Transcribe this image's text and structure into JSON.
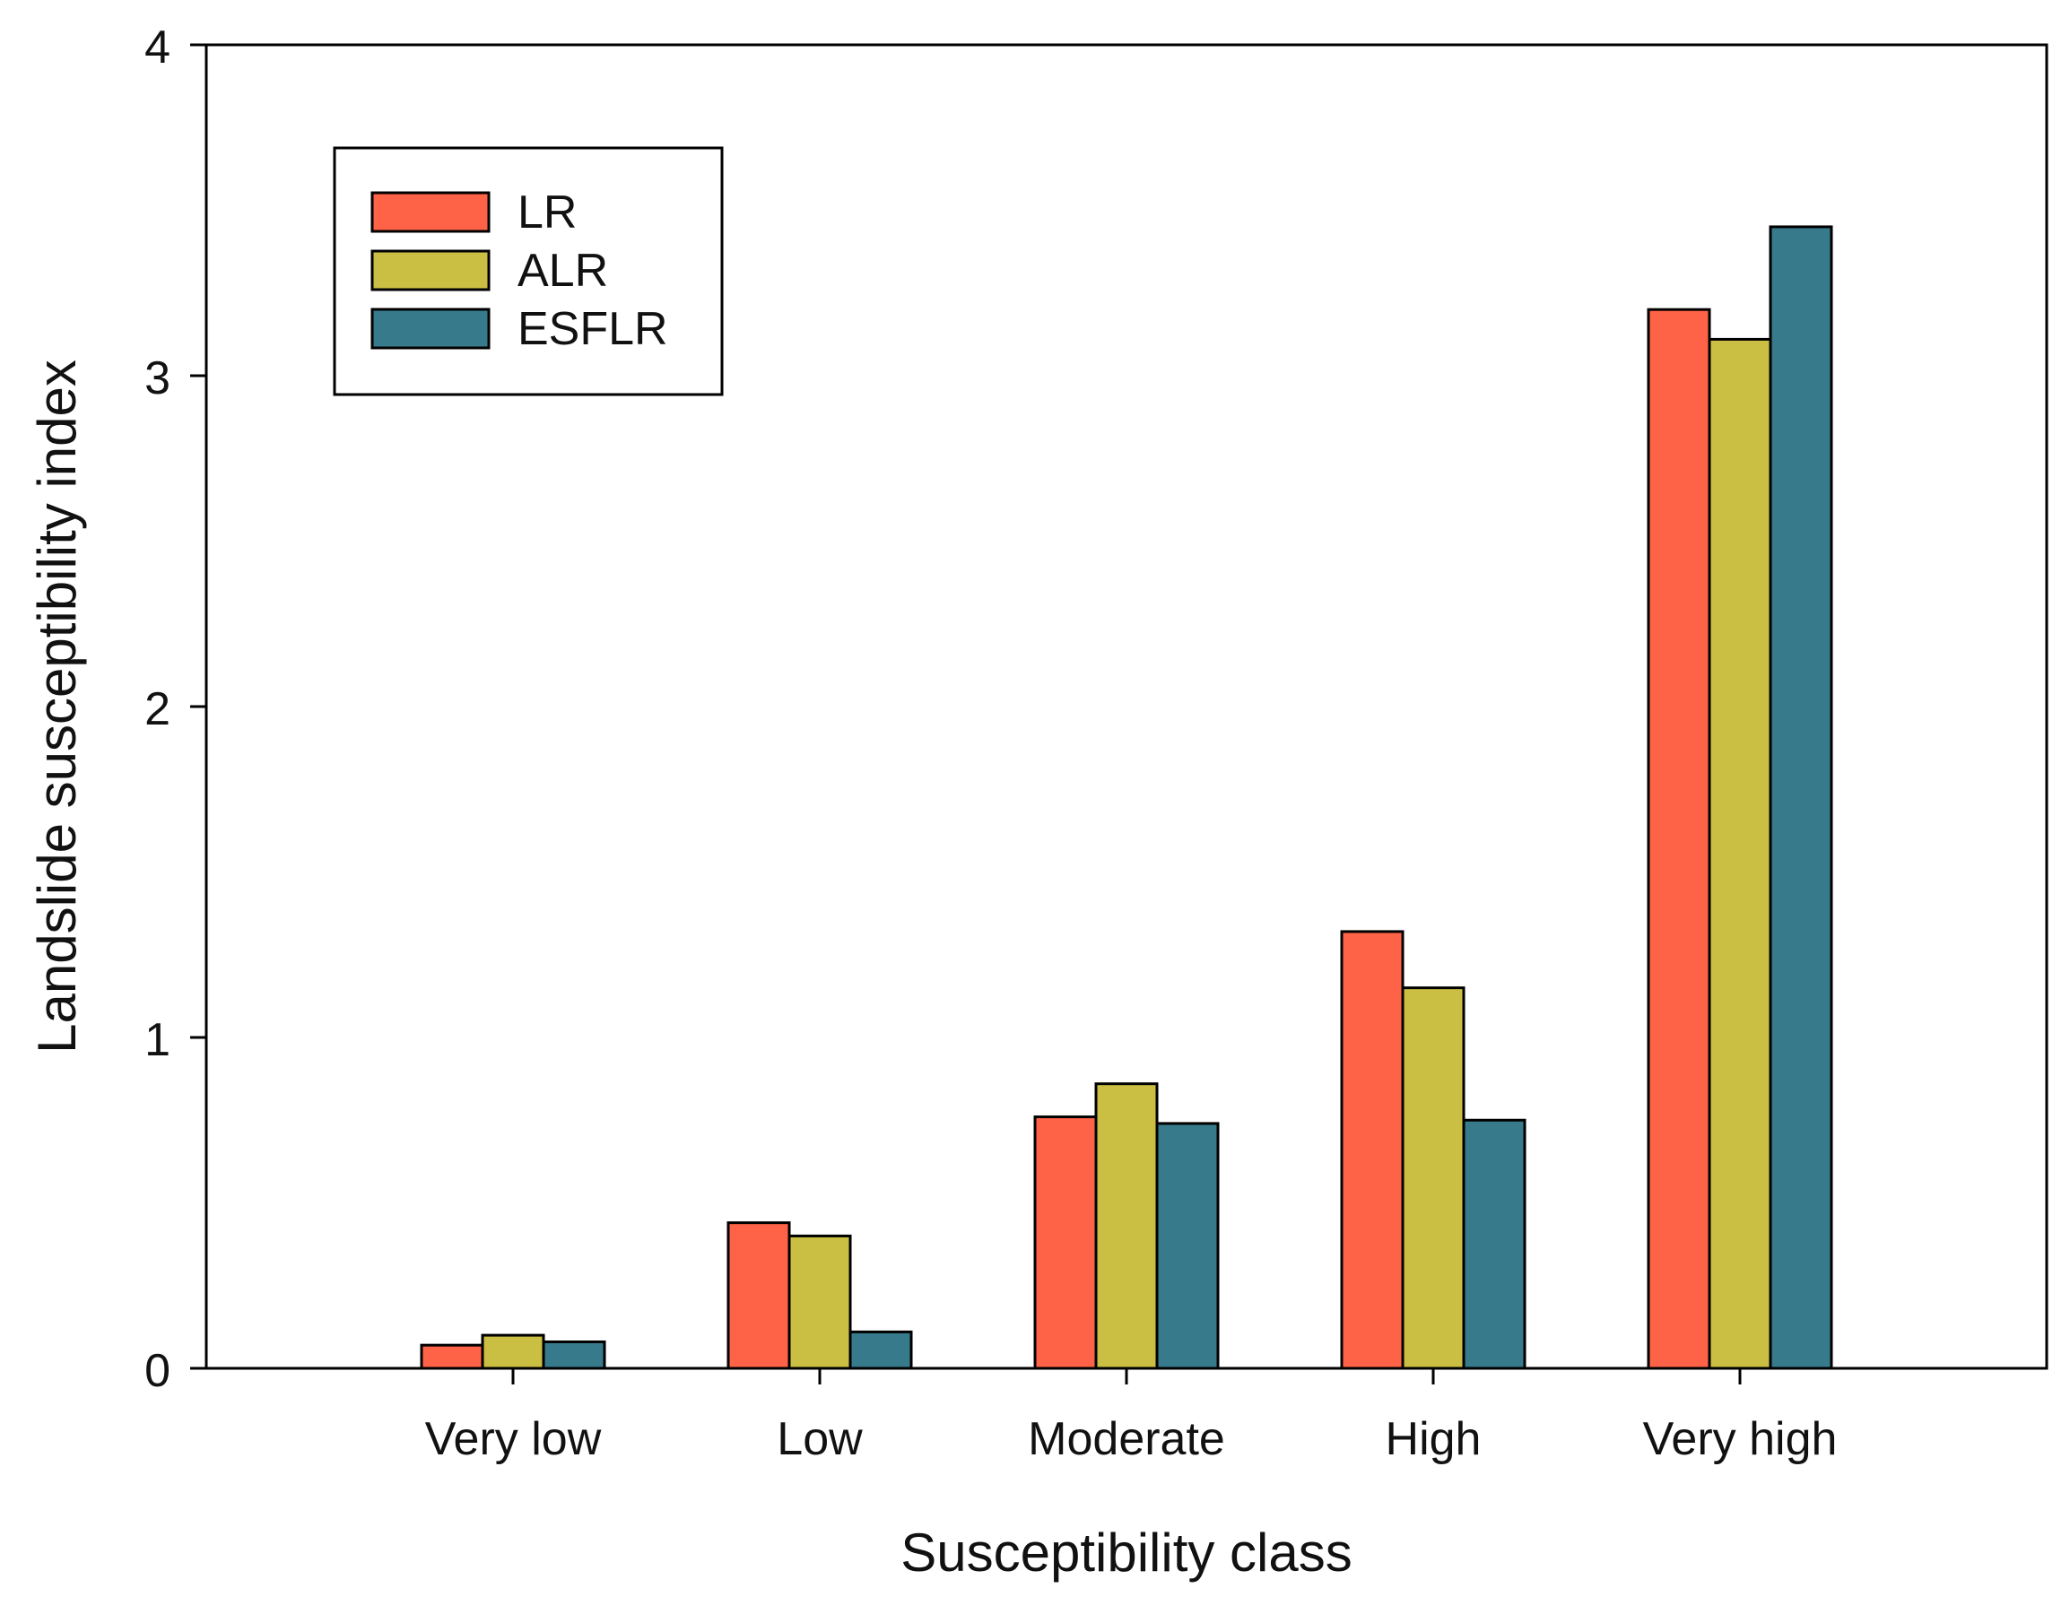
{
  "chart_data": {
    "type": "bar",
    "title": "",
    "xlabel": "Susceptibility class",
    "ylabel": "Landslide susceptibility index",
    "categories": [
      "Very low",
      "Low",
      "Moderate",
      "High",
      "Very high"
    ],
    "series": [
      {
        "name": "LR",
        "color": "#ff6347",
        "values": [
          0.07,
          0.44,
          0.76,
          1.32,
          3.2
        ]
      },
      {
        "name": "ALR",
        "color": "#cbbf43",
        "values": [
          0.1,
          0.4,
          0.86,
          1.15,
          3.11
        ]
      },
      {
        "name": "ESFLR",
        "color": "#377a8c",
        "values": [
          0.08,
          0.11,
          0.74,
          0.75,
          3.45
        ]
      }
    ],
    "ylim": [
      0,
      4
    ],
    "yticks": [
      0,
      1,
      2,
      3,
      4
    ],
    "grid": false,
    "legend_position": "top-left"
  }
}
